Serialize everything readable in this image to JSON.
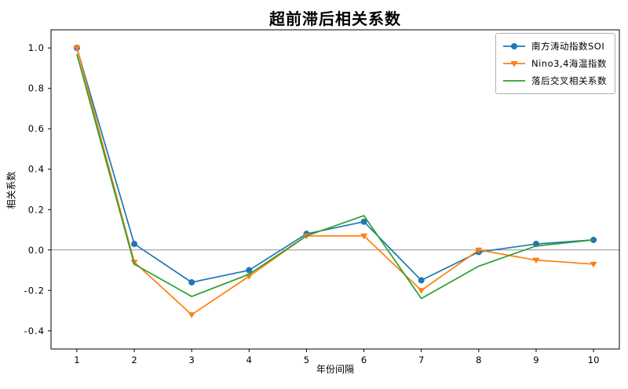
{
  "chart_data": {
    "type": "line",
    "title": "超前滞后相关系数",
    "xlabel": "年份间隔",
    "ylabel": "相关系数",
    "x": [
      1,
      2,
      3,
      4,
      5,
      6,
      7,
      8,
      9,
      10
    ],
    "series": [
      {
        "name": "南方涛动指数SOI",
        "color": "#1f77b4",
        "marker": "circle",
        "values": [
          1.0,
          0.03,
          -0.16,
          -0.1,
          0.08,
          0.14,
          -0.15,
          -0.01,
          0.03,
          0.05
        ]
      },
      {
        "name": "Nino3,4海温指数",
        "color": "#ff7f0e",
        "marker": "triangle-down",
        "values": [
          1.0,
          -0.06,
          -0.32,
          -0.13,
          0.07,
          0.07,
          -0.2,
          0.0,
          -0.05,
          -0.07
        ]
      },
      {
        "name": "落后交叉相关系数",
        "color": "#2ca02c",
        "marker": "none",
        "values": [
          0.97,
          -0.07,
          -0.23,
          -0.12,
          0.07,
          0.17,
          -0.24,
          -0.08,
          0.02,
          0.05
        ]
      }
    ],
    "xticks": [
      1,
      2,
      3,
      4,
      5,
      6,
      7,
      8,
      9,
      10
    ],
    "yticks": [
      -0.4,
      -0.2,
      0.0,
      0.2,
      0.4,
      0.6,
      0.8,
      1.0
    ],
    "xlim": [
      0.55,
      10.45
    ],
    "ylim": [
      -0.49,
      1.09
    ],
    "zero_line": true,
    "grid": false,
    "legend_position": "upper right",
    "axis_color": "#000000",
    "zero_line_color": "#6e6e6e",
    "background": "#ffffff"
  }
}
